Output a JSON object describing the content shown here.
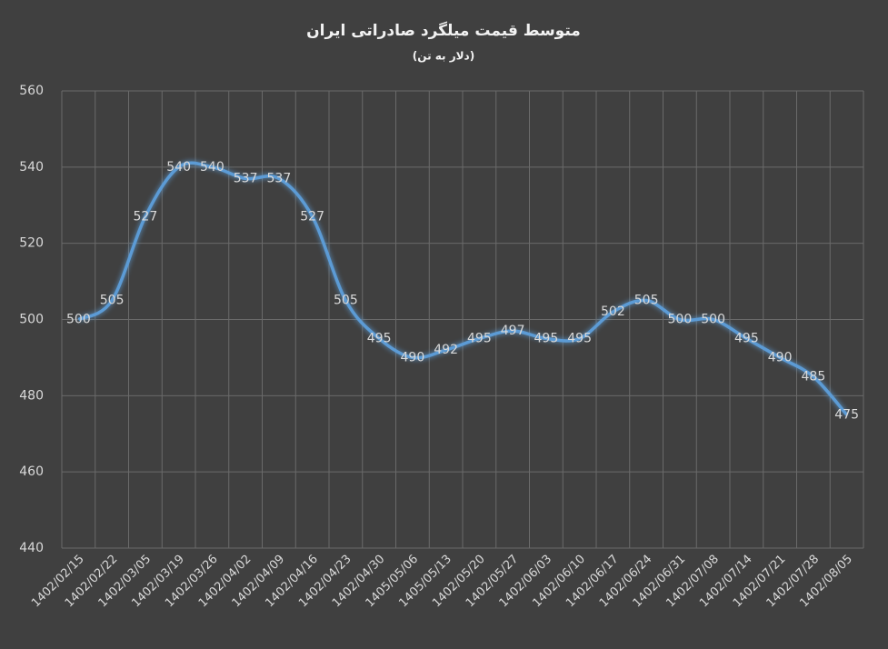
{
  "chart_data": {
    "type": "line",
    "title": "متوسط قیمت میلگرد صادراتی ایران",
    "subtitle": "(دلار به تن)",
    "categories": [
      "1402/02/15",
      "1402/02/22",
      "1402/03/05",
      "1402/03/19",
      "1402/03/26",
      "1402/04/02",
      "1402/04/09",
      "1402/04/16",
      "1402/04/23",
      "1402/04/30",
      "1405/05/06",
      "1405/05/13",
      "1402/05/20",
      "1402/05/27",
      "1402/06/03",
      "1402/06/10",
      "1402/06/17",
      "1402/06/24",
      "1402/06/31",
      "1402/07/08",
      "1402/07/14",
      "1402/07/21",
      "1402/07/28",
      "1402/08/05"
    ],
    "series": [
      {
        "color": "#5b9bd5",
        "values": [
          500,
          505,
          527,
          540,
          540,
          537,
          537,
          527,
          505,
          495,
          490,
          492,
          495,
          497,
          495,
          495,
          502,
          505,
          500,
          500,
          495,
          490,
          485,
          475
        ]
      }
    ],
    "ylim": [
      440,
      560
    ],
    "yticks": [
      440,
      460,
      480,
      500,
      520,
      540,
      560
    ],
    "grid": true
  }
}
